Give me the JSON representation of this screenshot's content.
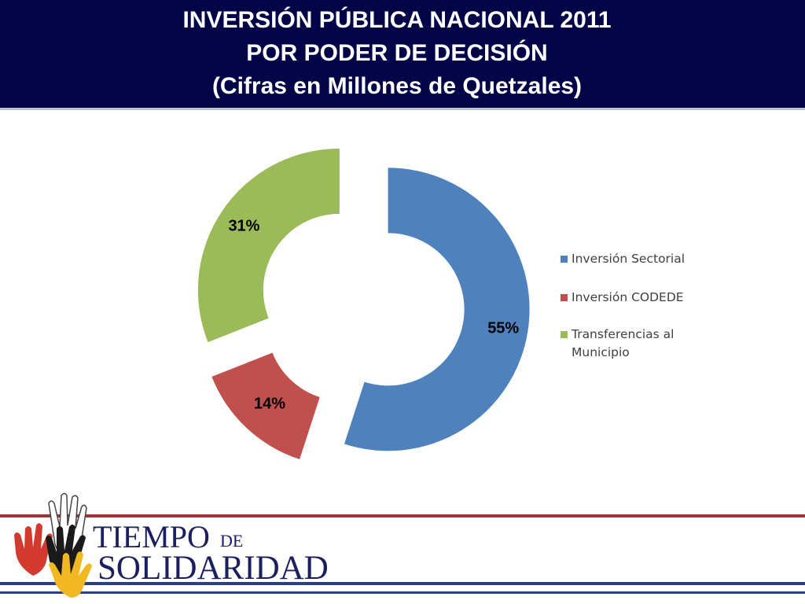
{
  "header": {
    "title_line1": "INVERSIÓN PÚBLICA NACIONAL 2011",
    "title_line2": "POR PODER DE DECISIÓN",
    "title_line3": "(Cifras en Millones de Quetzales)"
  },
  "chart_data": {
    "type": "pie",
    "variant": "exploded doughnut",
    "title": "INVERSIÓN PÚBLICA NACIONAL 2011 POR PODER DE DECISIÓN",
    "subtitle": "(Cifras en Millones de Quetzales)",
    "legend_position": "right",
    "categories": [
      "Inversión Sectorial",
      "Inversión CODEDE",
      "Transferencias al Municipio"
    ],
    "values": [
      55,
      14,
      31
    ],
    "value_labels": [
      "55%",
      "14%",
      "31%"
    ],
    "colors": [
      "#4f81bd",
      "#c0504d",
      "#9bbb59"
    ]
  },
  "legend": {
    "items": [
      {
        "label": "Inversión Sectorial",
        "color": "#4f81bd"
      },
      {
        "label": "Inversión CODEDE",
        "color": "#c0504d"
      },
      {
        "label": "Transferencias al",
        "label2": "Municipio",
        "color": "#9bbb59"
      }
    ]
  },
  "logo": {
    "word1": "TIEMPO",
    "word_de": "DE",
    "word2": "SOLIDARIDAD",
    "icon": "hands-icon"
  },
  "colors": {
    "header_bg": "#020447",
    "logo_text": "#1c1f5e",
    "footer_red": "#a23236",
    "footer_blue": "#2b3f86"
  }
}
